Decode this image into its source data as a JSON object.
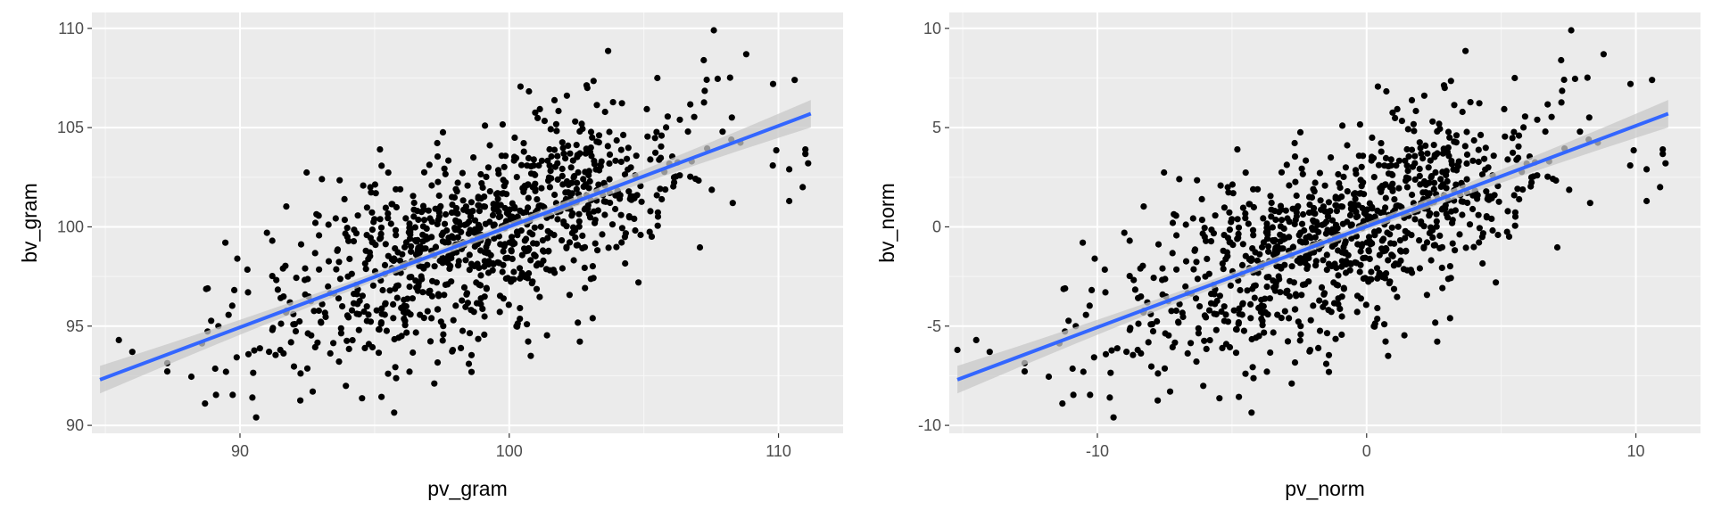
{
  "colors": {
    "panel_bg": "#ebebeb",
    "grid_major": "#ffffff",
    "point": "#000000",
    "fit_line": "#3366ff",
    "ci_band": "#c8c8c8",
    "tick_text": "#4d4d4d",
    "axis_title": "#000000"
  },
  "chart_data": [
    {
      "type": "scatter",
      "title": "",
      "xlabel": "pv_gram",
      "ylabel": "bv_gram",
      "xlim": [
        84.5,
        112.4
      ],
      "ylim": [
        89.6,
        110.8
      ],
      "xticks": [
        90,
        100,
        110
      ],
      "yticks": [
        90,
        95,
        100,
        105,
        110
      ],
      "grid": true,
      "point_count": 1000,
      "fit": {
        "method": "linear",
        "x": [
          84.8,
          111.2
        ],
        "y": [
          92.3,
          105.7
        ],
        "se_band": true
      },
      "sample_points": [
        [
          85.5,
          94.3
        ],
        [
          86.0,
          93.7
        ],
        [
          88.7,
          91.1
        ],
        [
          88.8,
          96.9
        ],
        [
          89.2,
          95.0
        ],
        [
          89.9,
          98.4
        ],
        [
          90.3,
          96.7
        ],
        [
          90.6,
          90.4
        ],
        [
          91.0,
          99.7
        ],
        [
          91.2,
          99.3
        ],
        [
          92.7,
          91.7
        ],
        [
          92.8,
          100.2
        ],
        [
          95.5,
          92.6
        ],
        [
          95.2,
          103.9
        ],
        [
          96.0,
          94.5
        ],
        [
          98.5,
          93.1
        ],
        [
          99.1,
          105.1
        ],
        [
          100.8,
          93.5
        ],
        [
          103.1,
          95.4
        ],
        [
          104.8,
          97.2
        ],
        [
          102.9,
          107.0
        ],
        [
          105.5,
          107.5
        ],
        [
          107.6,
          109.9
        ],
        [
          108.8,
          108.7
        ],
        [
          109.8,
          107.2
        ],
        [
          110.6,
          107.4
        ],
        [
          110.4,
          102.9
        ],
        [
          111.0,
          103.9
        ],
        [
          111.1,
          103.2
        ],
        [
          110.9,
          102.0
        ],
        [
          110.4,
          101.3
        ],
        [
          108.3,
          101.2
        ]
      ]
    },
    {
      "type": "scatter",
      "title": "",
      "xlabel": "pv_norm",
      "ylabel": "bv_norm",
      "xlim": [
        -15.5,
        12.4
      ],
      "ylim": [
        -10.4,
        10.8
      ],
      "xticks": [
        -10,
        0,
        10
      ],
      "yticks": [
        -10,
        -5,
        0,
        5,
        10
      ],
      "grid": true,
      "point_count": 1000,
      "fit": {
        "method": "linear",
        "x": [
          -15.2,
          11.2
        ],
        "y": [
          -7.7,
          5.7
        ],
        "se_band": true
      },
      "sample_points": [
        [
          -15.2,
          -6.2
        ],
        [
          -14.5,
          -5.7
        ],
        [
          -14.0,
          -6.3
        ],
        [
          -11.3,
          -8.9
        ],
        [
          -11.2,
          -3.1
        ],
        [
          -10.8,
          -5.0
        ],
        [
          -10.1,
          -1.6
        ],
        [
          -9.7,
          -3.3
        ],
        [
          -9.4,
          -9.6
        ],
        [
          -9.0,
          -0.3
        ],
        [
          -8.8,
          -0.7
        ],
        [
          -7.3,
          -8.3
        ],
        [
          -7.2,
          0.2
        ],
        [
          -4.5,
          -7.4
        ],
        [
          -4.8,
          3.9
        ],
        [
          -4.0,
          -5.5
        ],
        [
          -1.5,
          -6.9
        ],
        [
          -0.9,
          5.1
        ],
        [
          0.8,
          -6.5
        ],
        [
          3.1,
          -4.6
        ],
        [
          4.8,
          -2.8
        ],
        [
          2.9,
          7.0
        ],
        [
          5.5,
          7.5
        ],
        [
          7.6,
          9.9
        ],
        [
          8.8,
          8.7
        ],
        [
          9.8,
          7.2
        ],
        [
          10.6,
          7.4
        ],
        [
          10.4,
          2.9
        ],
        [
          11.0,
          3.9
        ],
        [
          11.1,
          3.2
        ],
        [
          10.9,
          2.0
        ],
        [
          10.4,
          1.3
        ],
        [
          8.3,
          1.2
        ]
      ]
    }
  ]
}
